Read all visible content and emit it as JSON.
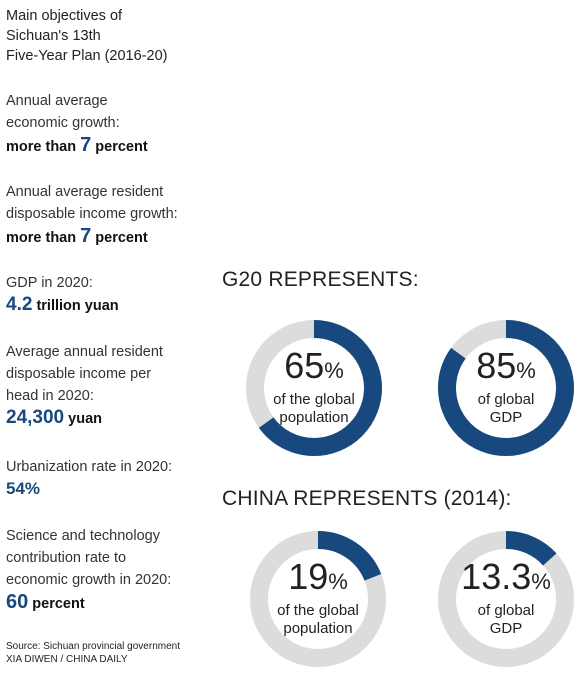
{
  "heading": "Main objectives of\nSichuan's 13th\nFive-Year Plan (2016-20)",
  "objectives": [
    {
      "label": "Annual average\neconomic growth:",
      "pre": "more than ",
      "num": "7",
      "post": " percent"
    },
    {
      "label": "Annual average resident\ndisposable income growth:",
      "pre": "more than ",
      "num": "7",
      "post": " percent"
    },
    {
      "label": "GDP in 2020:",
      "pre": "",
      "num": "4.2",
      "post": " trillion yuan"
    },
    {
      "label": "Average annual resident\ndisposable income per\nhead in 2020:",
      "pre": "",
      "num": "24,300",
      "post": " yuan"
    },
    {
      "label": "Urbanization rate in 2020:",
      "pre": "",
      "num": "54%",
      "post": ""
    },
    {
      "label": "Science and technology\ncontribution rate to\neconomic growth in 2020:",
      "pre": "",
      "num": "60",
      "post": " percent"
    }
  ],
  "source": "Source: Sichuan provincial government",
  "credit": "XIA DIWEN / CHINA DAILY",
  "colors": {
    "accent": "#17497e",
    "track": "#dcdcdc"
  },
  "chart_data": [
    {
      "type": "pie",
      "title": "G20 REPRESENTS:",
      "series": [
        {
          "value": 65,
          "display": "65",
          "unit": "%",
          "description": "of the global\npopulation"
        },
        {
          "value": 85,
          "display": "85",
          "unit": "%",
          "description": "of global\nGDP"
        }
      ]
    },
    {
      "type": "pie",
      "title": "CHINA REPRESENTS (2014):",
      "series": [
        {
          "value": 19,
          "display": "19",
          "unit": "%",
          "description": "of the global\npopulation"
        },
        {
          "value": 13.3,
          "display": "13.3",
          "unit": "%",
          "description": "of global\nGDP"
        }
      ]
    }
  ]
}
